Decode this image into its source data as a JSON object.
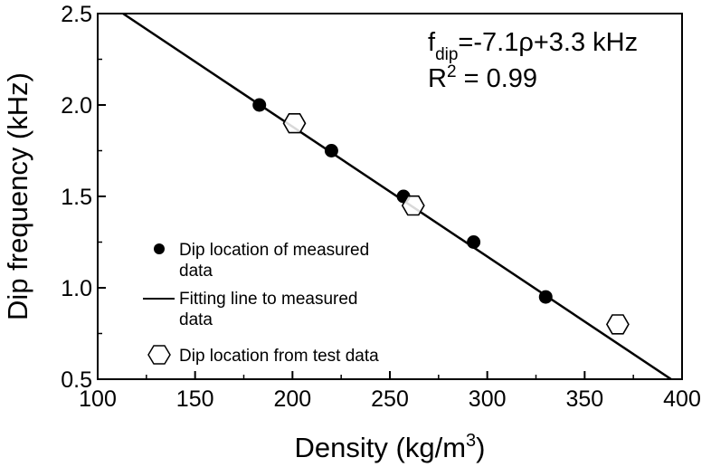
{
  "chart_data": {
    "type": "scatter",
    "title": "",
    "xlabel": "Density (kg/m",
    "xlabel_sup": "3",
    "xlabel_close": ")",
    "ylabel": "Dip frequency (kHz)",
    "xlim": [
      100,
      400
    ],
    "ylim": [
      0.5,
      2.5
    ],
    "x_ticks": [
      "100",
      "150",
      "200",
      "250",
      "300",
      "350",
      "400"
    ],
    "y_ticks": [
      "0.5",
      "1.0",
      "1.5",
      "2.0",
      "2.5"
    ],
    "grid": false,
    "series": [
      {
        "name": "Dip location of measured data",
        "marker": "filled-circle",
        "x": [
          183,
          220,
          257,
          293,
          330
        ],
        "y": [
          2.0,
          1.75,
          1.5,
          1.25,
          0.95
        ]
      },
      {
        "name": "Fitting line to measured data",
        "marker": "line",
        "slope_khz_per_g_cm3": -7.1,
        "intercept_khz": 3.3,
        "x": [
          113,
          400
        ],
        "y": [
          2.5,
          0.46
        ]
      },
      {
        "name": "Dip location from test data",
        "marker": "open-hexagon",
        "x": [
          201,
          262,
          367
        ],
        "y": [
          1.9,
          1.45,
          0.8
        ]
      }
    ],
    "legend": {
      "placement": "bottom-left",
      "entries": [
        {
          "lines": [
            "Dip location of measured",
            "data"
          ]
        },
        {
          "lines": [
            "Fitting line to measured",
            "data"
          ]
        },
        {
          "lines": [
            "Dip location from test data"
          ]
        }
      ]
    },
    "annotation": {
      "eq_f": "f",
      "eq_sub": "dip",
      "eq_rest": "=-7.1ρ+3.3 kHz",
      "r2_r": "R",
      "r2_sup": "2",
      "r2_rest": " = 0.99"
    }
  }
}
